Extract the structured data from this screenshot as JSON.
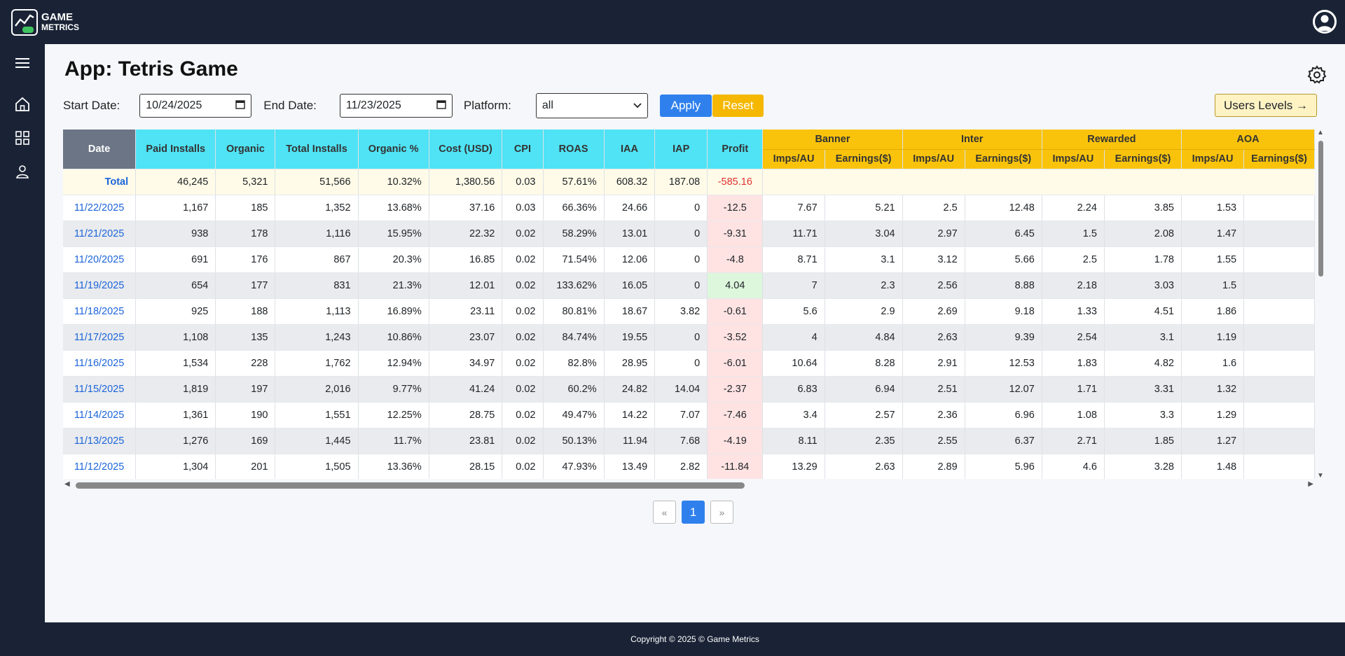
{
  "app": {
    "logo_line1": "GAME",
    "logo_line2": "METRICS"
  },
  "page": {
    "title": "App: Tetris Game"
  },
  "filters": {
    "start_label": "Start Date:",
    "start_value": "10/24/2025",
    "end_label": "End Date:",
    "end_value": "11/23/2025",
    "platform_label": "Platform:",
    "platform_value": "all",
    "apply_label": "Apply",
    "reset_label": "Reset",
    "users_levels_label": "Users Levels →"
  },
  "table": {
    "columns": [
      "Date",
      "Paid Installs",
      "Organic",
      "Total Installs",
      "Organic %",
      "Cost (USD)",
      "CPI",
      "ROAS",
      "IAA",
      "IAP",
      "Profit"
    ],
    "groups": [
      "Banner",
      "Inter",
      "Rewarded",
      "AOA"
    ],
    "subcolumns": [
      "Imps/AU",
      "Earnings($)"
    ],
    "total": {
      "label": "Total",
      "paid": "46,245",
      "organic": "5,321",
      "total": "51,566",
      "organic_pct": "10.32%",
      "cost": "1,380.56",
      "cpi": "0.03",
      "roas": "57.61%",
      "iaa": "608.32",
      "iap": "187.08",
      "profit": "-585.16"
    },
    "rows": [
      {
        "date": "11/22/2025",
        "paid": "1,167",
        "organic": "185",
        "total": "1,352",
        "organic_pct": "13.68%",
        "cost": "37.16",
        "cpi": "0.03",
        "roas": "66.36%",
        "iaa": "24.66",
        "iap": "0",
        "profit": "-12.5",
        "status": "neg",
        "banner_imps": "7.67",
        "banner_earn": "5.21",
        "inter_imps": "2.5",
        "inter_earn": "12.48",
        "rew_imps": "2.24",
        "rew_earn": "3.85",
        "aoa_imps": "1.53"
      },
      {
        "date": "11/21/2025",
        "paid": "938",
        "organic": "178",
        "total": "1,116",
        "organic_pct": "15.95%",
        "cost": "22.32",
        "cpi": "0.02",
        "roas": "58.29%",
        "iaa": "13.01",
        "iap": "0",
        "profit": "-9.31",
        "status": "neg",
        "banner_imps": "11.71",
        "banner_earn": "3.04",
        "inter_imps": "2.97",
        "inter_earn": "6.45",
        "rew_imps": "1.5",
        "rew_earn": "2.08",
        "aoa_imps": "1.47"
      },
      {
        "date": "11/20/2025",
        "paid": "691",
        "organic": "176",
        "total": "867",
        "organic_pct": "20.3%",
        "cost": "16.85",
        "cpi": "0.02",
        "roas": "71.54%",
        "iaa": "12.06",
        "iap": "0",
        "profit": "-4.8",
        "status": "neg",
        "banner_imps": "8.71",
        "banner_earn": "3.1",
        "inter_imps": "3.12",
        "inter_earn": "5.66",
        "rew_imps": "2.5",
        "rew_earn": "1.78",
        "aoa_imps": "1.55"
      },
      {
        "date": "11/19/2025",
        "paid": "654",
        "organic": "177",
        "total": "831",
        "organic_pct": "21.3%",
        "cost": "12.01",
        "cpi": "0.02",
        "roas": "133.62%",
        "iaa": "16.05",
        "iap": "0",
        "profit": "4.04",
        "status": "pos",
        "banner_imps": "7",
        "banner_earn": "2.3",
        "inter_imps": "2.56",
        "inter_earn": "8.88",
        "rew_imps": "2.18",
        "rew_earn": "3.03",
        "aoa_imps": "1.5"
      },
      {
        "date": "11/18/2025",
        "paid": "925",
        "organic": "188",
        "total": "1,113",
        "organic_pct": "16.89%",
        "cost": "23.11",
        "cpi": "0.02",
        "roas": "80.81%",
        "iaa": "18.67",
        "iap": "3.82",
        "profit": "-0.61",
        "status": "neg",
        "banner_imps": "5.6",
        "banner_earn": "2.9",
        "inter_imps": "2.69",
        "inter_earn": "9.18",
        "rew_imps": "1.33",
        "rew_earn": "4.51",
        "aoa_imps": "1.86"
      },
      {
        "date": "11/17/2025",
        "paid": "1,108",
        "organic": "135",
        "total": "1,243",
        "organic_pct": "10.86%",
        "cost": "23.07",
        "cpi": "0.02",
        "roas": "84.74%",
        "iaa": "19.55",
        "iap": "0",
        "profit": "-3.52",
        "status": "neg",
        "banner_imps": "4",
        "banner_earn": "4.84",
        "inter_imps": "2.63",
        "inter_earn": "9.39",
        "rew_imps": "2.54",
        "rew_earn": "3.1",
        "aoa_imps": "1.19"
      },
      {
        "date": "11/16/2025",
        "paid": "1,534",
        "organic": "228",
        "total": "1,762",
        "organic_pct": "12.94%",
        "cost": "34.97",
        "cpi": "0.02",
        "roas": "82.8%",
        "iaa": "28.95",
        "iap": "0",
        "profit": "-6.01",
        "status": "neg",
        "banner_imps": "10.64",
        "banner_earn": "8.28",
        "inter_imps": "2.91",
        "inter_earn": "12.53",
        "rew_imps": "1.83",
        "rew_earn": "4.82",
        "aoa_imps": "1.6"
      },
      {
        "date": "11/15/2025",
        "paid": "1,819",
        "organic": "197",
        "total": "2,016",
        "organic_pct": "9.77%",
        "cost": "41.24",
        "cpi": "0.02",
        "roas": "60.2%",
        "iaa": "24.82",
        "iap": "14.04",
        "profit": "-2.37",
        "status": "neg",
        "banner_imps": "6.83",
        "banner_earn": "6.94",
        "inter_imps": "2.51",
        "inter_earn": "12.07",
        "rew_imps": "1.71",
        "rew_earn": "3.31",
        "aoa_imps": "1.32"
      },
      {
        "date": "11/14/2025",
        "paid": "1,361",
        "organic": "190",
        "total": "1,551",
        "organic_pct": "12.25%",
        "cost": "28.75",
        "cpi": "0.02",
        "roas": "49.47%",
        "iaa": "14.22",
        "iap": "7.07",
        "profit": "-7.46",
        "status": "neg",
        "banner_imps": "3.4",
        "banner_earn": "2.57",
        "inter_imps": "2.36",
        "inter_earn": "6.96",
        "rew_imps": "1.08",
        "rew_earn": "3.3",
        "aoa_imps": "1.29"
      },
      {
        "date": "11/13/2025",
        "paid": "1,276",
        "organic": "169",
        "total": "1,445",
        "organic_pct": "11.7%",
        "cost": "23.81",
        "cpi": "0.02",
        "roas": "50.13%",
        "iaa": "11.94",
        "iap": "7.68",
        "profit": "-4.19",
        "status": "neg",
        "banner_imps": "8.11",
        "banner_earn": "2.35",
        "inter_imps": "2.55",
        "inter_earn": "6.37",
        "rew_imps": "2.71",
        "rew_earn": "1.85",
        "aoa_imps": "1.27"
      },
      {
        "date": "11/12/2025",
        "paid": "1,304",
        "organic": "201",
        "total": "1,505",
        "organic_pct": "13.36%",
        "cost": "28.15",
        "cpi": "0.02",
        "roas": "47.93%",
        "iaa": "13.49",
        "iap": "2.82",
        "profit": "-11.84",
        "status": "neg",
        "banner_imps": "13.29",
        "banner_earn": "2.63",
        "inter_imps": "2.89",
        "inter_earn": "5.96",
        "rew_imps": "4.6",
        "rew_earn": "3.28",
        "aoa_imps": "1.48"
      }
    ]
  },
  "pagination": {
    "prev": "«",
    "current": "1",
    "next": "»"
  },
  "footer": {
    "text": "Copyright © 2025 © Game Metrics"
  },
  "colors": {
    "nav": "#1a2336",
    "accent": "#2f80ed",
    "gold": "#f9c30b",
    "cyan": "#4fe3f5"
  }
}
